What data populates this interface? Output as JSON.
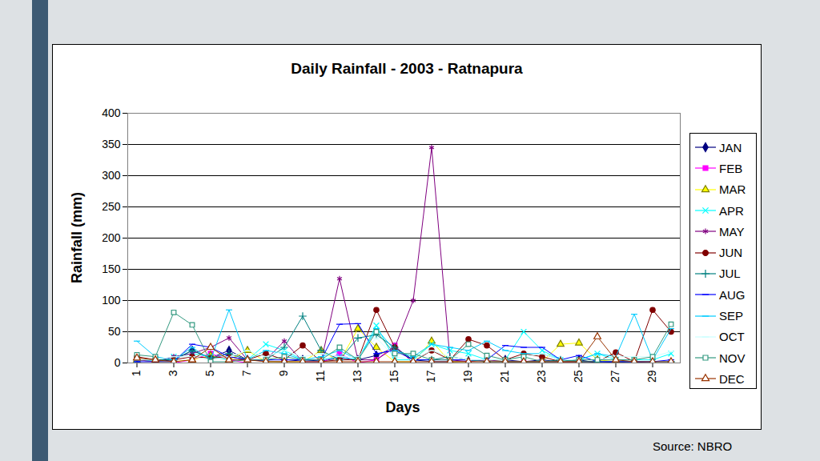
{
  "chart_data": {
    "type": "line",
    "title": "Daily Rainfall - 2003 - Ratnapura",
    "x_label": "Days",
    "y_label": "Rainfall (mm)",
    "caption": "Source: NBRO",
    "x": [
      1,
      2,
      3,
      4,
      5,
      6,
      7,
      8,
      9,
      10,
      11,
      12,
      13,
      14,
      15,
      16,
      17,
      18,
      19,
      20,
      21,
      22,
      23,
      24,
      25,
      26,
      27,
      28,
      29,
      30
    ],
    "xlim": [
      0.5,
      30.5
    ],
    "xticks": [
      1,
      3,
      5,
      7,
      9,
      11,
      13,
      15,
      17,
      19,
      21,
      23,
      25,
      27,
      29
    ],
    "ylim": [
      0,
      400
    ],
    "yticks": [
      0,
      50,
      100,
      150,
      200,
      250,
      300,
      350,
      400
    ],
    "grid": true,
    "legend": "right",
    "series": [
      {
        "name": "JAN",
        "color": "#000080",
        "marker": "diamond",
        "values": [
          5,
          2,
          5,
          20,
          8,
          20,
          5,
          3,
          2,
          5,
          3,
          8,
          5,
          12,
          25,
          5,
          2,
          2,
          3,
          5,
          5,
          2,
          5,
          2,
          5,
          0,
          2,
          0,
          0,
          0
        ]
      },
      {
        "name": "FEB",
        "color": "#ff00ff",
        "marker": "square",
        "values": [
          0,
          0,
          0,
          5,
          15,
          5,
          0,
          0,
          0,
          0,
          0,
          15,
          0,
          5,
          28,
          0,
          0,
          0,
          0,
          0,
          0,
          0,
          0,
          0,
          0,
          0,
          0,
          0,
          null,
          null
        ]
      },
      {
        "name": "MAR",
        "color": "#ffff00",
        "marker": "triangle",
        "values": [
          5,
          2,
          2,
          5,
          12,
          5,
          20,
          2,
          2,
          2,
          20,
          2,
          55,
          25,
          2,
          2,
          35,
          2,
          2,
          5,
          2,
          2,
          2,
          30,
          32,
          5,
          2,
          2,
          0,
          0
        ]
      },
      {
        "name": "APR",
        "color": "#00ffff",
        "marker": "x",
        "values": [
          5,
          3,
          10,
          15,
          10,
          5,
          5,
          30,
          20,
          5,
          5,
          10,
          5,
          60,
          5,
          5,
          30,
          20,
          15,
          5,
          5,
          50,
          20,
          5,
          5,
          15,
          5,
          5,
          5,
          15
        ]
      },
      {
        "name": "MAY",
        "color": "#800080",
        "marker": "asterisk",
        "values": [
          5,
          2,
          10,
          15,
          25,
          40,
          5,
          5,
          35,
          2,
          2,
          135,
          5,
          5,
          25,
          100,
          345,
          5,
          2,
          5,
          2,
          2,
          2,
          2,
          2,
          2,
          2,
          2,
          0,
          0
        ]
      },
      {
        "name": "JUN",
        "color": "#800000",
        "marker": "circle",
        "values": [
          10,
          5,
          5,
          10,
          8,
          10,
          5,
          15,
          5,
          28,
          2,
          5,
          5,
          85,
          25,
          2,
          20,
          5,
          38,
          28,
          5,
          15,
          10,
          2,
          2,
          2,
          17,
          2,
          85,
          50
        ]
      },
      {
        "name": "JUL",
        "color": "#008080",
        "marker": "plus",
        "values": [
          5,
          5,
          5,
          20,
          8,
          15,
          5,
          5,
          25,
          75,
          20,
          5,
          40,
          45,
          25,
          5,
          5,
          10,
          5,
          2,
          2,
          2,
          2,
          5,
          2,
          2,
          2,
          2,
          2,
          2
        ]
      },
      {
        "name": "AUG",
        "color": "#0000ff",
        "marker": "dash",
        "values": [
          2,
          2,
          2,
          30,
          25,
          10,
          5,
          5,
          5,
          5,
          5,
          62,
          63,
          15,
          20,
          5,
          5,
          5,
          5,
          5,
          28,
          25,
          25,
          5,
          12,
          2,
          2,
          2,
          2,
          5
        ]
      },
      {
        "name": "SEP",
        "color": "#00ccff",
        "marker": "dash",
        "values": [
          35,
          10,
          5,
          25,
          5,
          85,
          5,
          20,
          15,
          5,
          10,
          20,
          5,
          55,
          20,
          10,
          30,
          25,
          20,
          35,
          20,
          15,
          15,
          5,
          5,
          15,
          10,
          78,
          5,
          55
        ]
      },
      {
        "name": "OCT",
        "color": "#ccffff",
        "marker": "dash",
        "values": [
          5,
          5,
          10,
          10,
          5,
          10,
          20,
          10,
          20,
          10,
          15,
          10,
          10,
          40,
          10,
          5,
          20,
          10,
          5,
          5,
          5,
          10,
          15,
          5,
          5,
          5,
          10,
          10,
          10,
          18
        ]
      },
      {
        "name": "NOV",
        "color": "#339980",
        "marker": "open_square",
        "values": [
          13,
          10,
          81,
          61,
          2,
          2,
          5,
          5,
          10,
          5,
          5,
          25,
          5,
          50,
          15,
          15,
          5,
          5,
          30,
          12,
          5,
          10,
          2,
          2,
          5,
          5,
          5,
          5,
          10,
          62
        ]
      },
      {
        "name": "DEC",
        "color": "#993300",
        "marker": "open_triangle",
        "values": [
          8,
          5,
          2,
          5,
          25,
          5,
          5,
          2,
          2,
          2,
          2,
          2,
          2,
          2,
          2,
          2,
          2,
          2,
          2,
          2,
          2,
          2,
          2,
          2,
          2,
          42,
          5,
          2,
          2,
          2
        ]
      }
    ]
  }
}
